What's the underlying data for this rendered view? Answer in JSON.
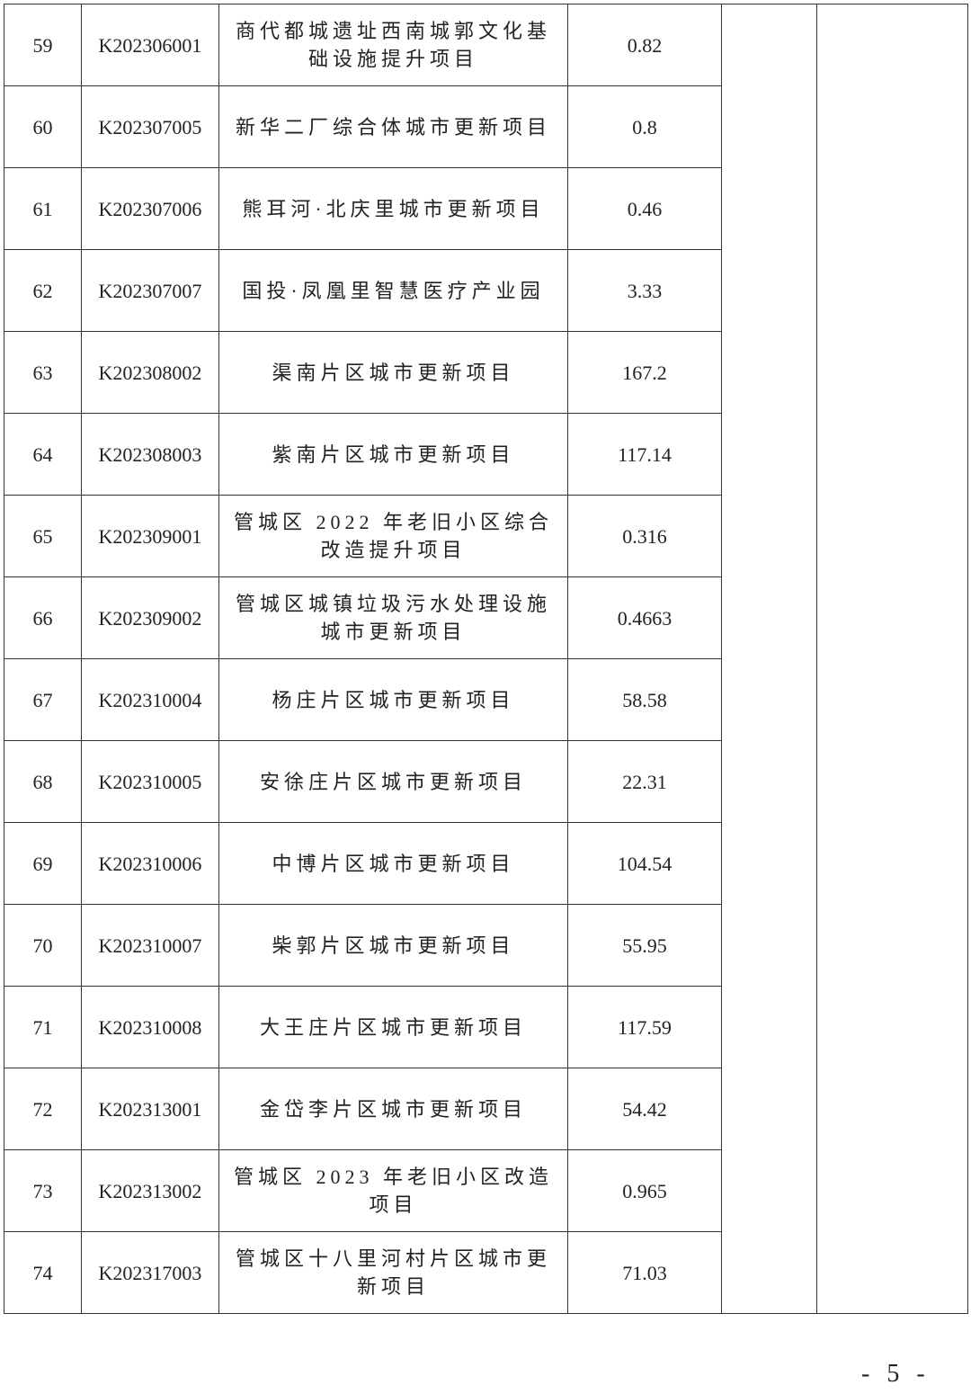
{
  "rows": [
    {
      "no": "59",
      "code": "K202306001",
      "name": "商代都城遗址西南城郭文化基础设施提升项目",
      "value": "0.82"
    },
    {
      "no": "60",
      "code": "K202307005",
      "name": "新华二厂综合体城市更新项目",
      "value": "0.8"
    },
    {
      "no": "61",
      "code": "K202307006",
      "name": "熊耳河·北庆里城市更新项目",
      "value": "0.46"
    },
    {
      "no": "62",
      "code": "K202307007",
      "name": "国投·凤凰里智慧医疗产业园",
      "value": "3.33"
    },
    {
      "no": "63",
      "code": "K202308002",
      "name": "渠南片区城市更新项目",
      "value": "167.2"
    },
    {
      "no": "64",
      "code": "K202308003",
      "name": "紫南片区城市更新项目",
      "value": "117.14"
    },
    {
      "no": "65",
      "code": "K202309001",
      "name": "管城区 2022 年老旧小区综合改造提升项目",
      "value": "0.316"
    },
    {
      "no": "66",
      "code": "K202309002",
      "name": "管城区城镇垃圾污水处理设施城市更新项目",
      "value": "0.4663"
    },
    {
      "no": "67",
      "code": "K202310004",
      "name": "杨庄片区城市更新项目",
      "value": "58.58"
    },
    {
      "no": "68",
      "code": "K202310005",
      "name": "安徐庄片区城市更新项目",
      "value": "22.31"
    },
    {
      "no": "69",
      "code": "K202310006",
      "name": "中博片区城市更新项目",
      "value": "104.54"
    },
    {
      "no": "70",
      "code": "K202310007",
      "name": "柴郭片区城市更新项目",
      "value": "55.95"
    },
    {
      "no": "71",
      "code": "K202310008",
      "name": "大王庄片区城市更新项目",
      "value": "117.59"
    },
    {
      "no": "72",
      "code": "K202313001",
      "name": "金岱李片区城市更新项目",
      "value": "54.42"
    },
    {
      "no": "73",
      "code": "K202313002",
      "name": "管城区 2023 年老旧小区改造项目",
      "value": "0.965"
    },
    {
      "no": "74",
      "code": "K202317003",
      "name": "管城区十八里河村片区城市更新项目",
      "value": "71.03"
    }
  ],
  "page_number": "- 5 -"
}
